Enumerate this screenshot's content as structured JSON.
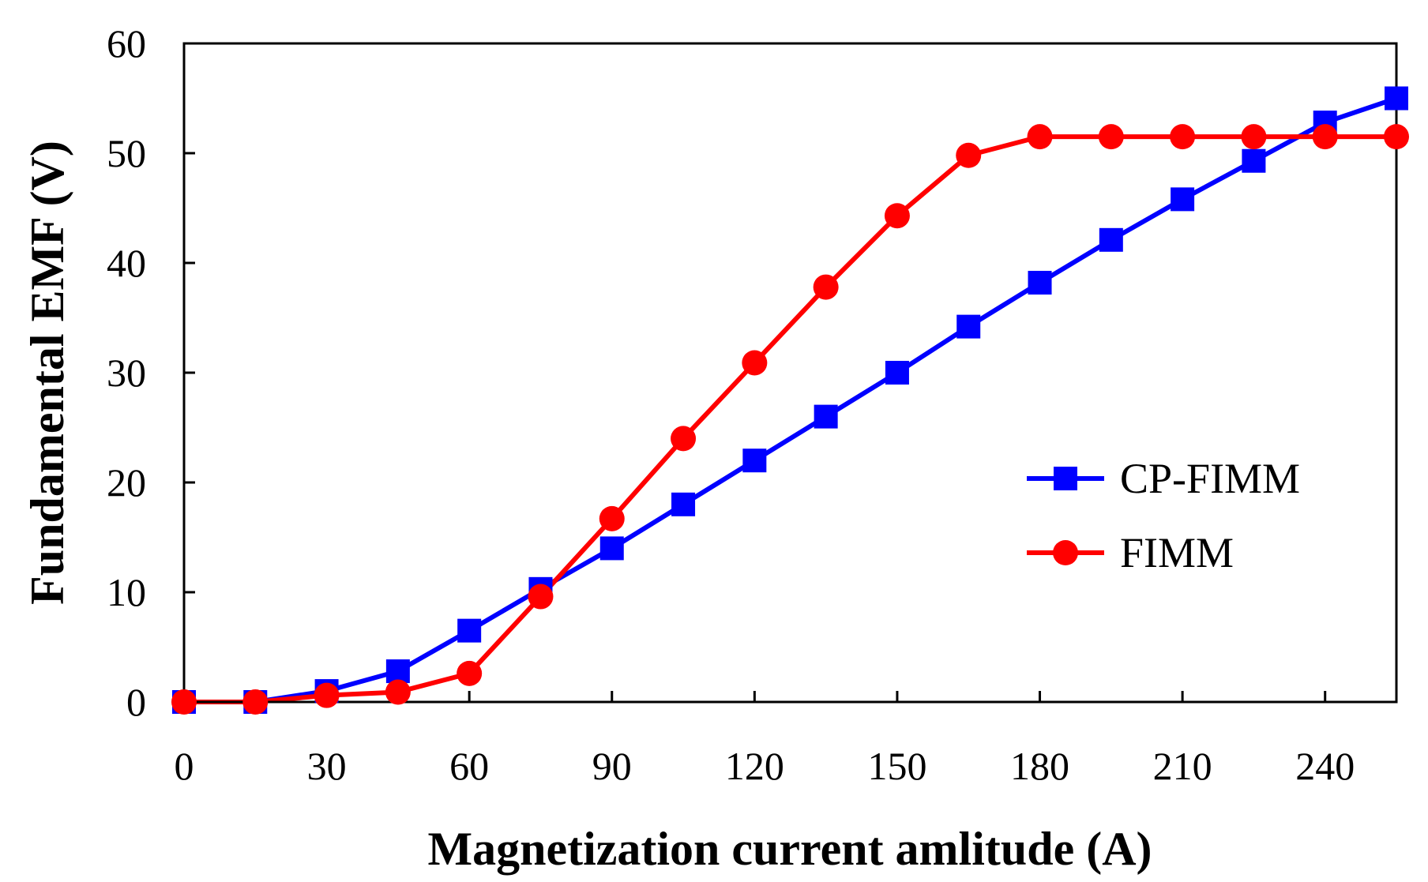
{
  "chart_data": {
    "type": "line",
    "title": "",
    "xlabel": "Magnetization current amlitude (A)",
    "ylabel": "Fundamental EMF (V)",
    "xlim": [
      0,
      255
    ],
    "ylim": [
      0,
      60
    ],
    "x_ticks": [
      0,
      30,
      60,
      90,
      120,
      150,
      180,
      210,
      240
    ],
    "y_ticks": [
      0,
      10,
      20,
      30,
      40,
      50,
      60
    ],
    "grid": false,
    "legend_position": "right",
    "series": [
      {
        "name": "CP-FIMM",
        "color": "#0000ff",
        "marker": "square",
        "x": [
          0,
          15,
          30,
          45,
          60,
          75,
          90,
          105,
          120,
          135,
          150,
          165,
          180,
          195,
          210,
          225,
          240,
          255
        ],
        "values": [
          0,
          0,
          1.0,
          2.8,
          6.5,
          10.3,
          14.0,
          18.0,
          22.0,
          26.0,
          30.0,
          34.2,
          38.2,
          42.1,
          45.8,
          49.3,
          52.8,
          55.0
        ]
      },
      {
        "name": "FIMM",
        "color": "#ff0000",
        "marker": "circle",
        "x": [
          0,
          15,
          30,
          45,
          60,
          75,
          90,
          105,
          120,
          135,
          150,
          165,
          180,
          195,
          210,
          225,
          240,
          255
        ],
        "values": [
          0,
          0,
          0.6,
          0.9,
          2.6,
          9.6,
          16.7,
          24.0,
          30.9,
          37.8,
          44.3,
          49.8,
          51.5,
          51.5,
          51.5,
          51.5,
          51.5,
          51.5
        ]
      }
    ]
  }
}
